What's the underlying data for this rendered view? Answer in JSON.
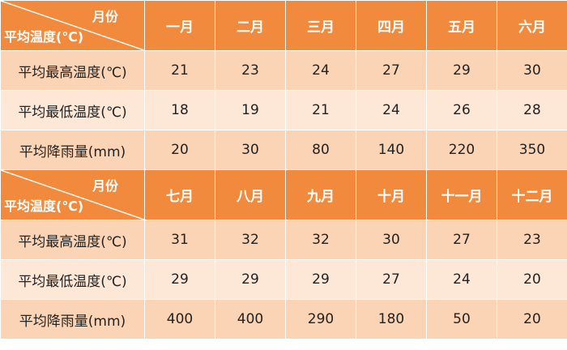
{
  "corner": {
    "month_label": "月份",
    "row_label": "平均温度(℃)"
  },
  "sections": [
    {
      "months": [
        "一月",
        "二月",
        "三月",
        "四月",
        "五月",
        "六月"
      ],
      "rows": [
        {
          "label": "平均最高温度(℃)",
          "values": [
            "21",
            "23",
            "24",
            "27",
            "29",
            "30"
          ]
        },
        {
          "label": "平均最低温度(℃)",
          "values": [
            "18",
            "19",
            "21",
            "24",
            "26",
            "28"
          ]
        },
        {
          "label": "平均降雨量(mm)",
          "values": [
            "20",
            "30",
            "80",
            "140",
            "220",
            "350"
          ]
        }
      ]
    },
    {
      "months": [
        "七月",
        "八月",
        "九月",
        "十月",
        "十一月",
        "十二月"
      ],
      "rows": [
        {
          "label": "平均最高温度(℃)",
          "values": [
            "31",
            "32",
            "32",
            "30",
            "27",
            "23"
          ]
        },
        {
          "label": "平均最低温度(℃)",
          "values": [
            "29",
            "29",
            "29",
            "27",
            "24",
            "20"
          ]
        },
        {
          "label": "平均降雨量(mm)",
          "values": [
            "400",
            "400",
            "290",
            "180",
            "50",
            "20"
          ]
        }
      ]
    }
  ]
}
